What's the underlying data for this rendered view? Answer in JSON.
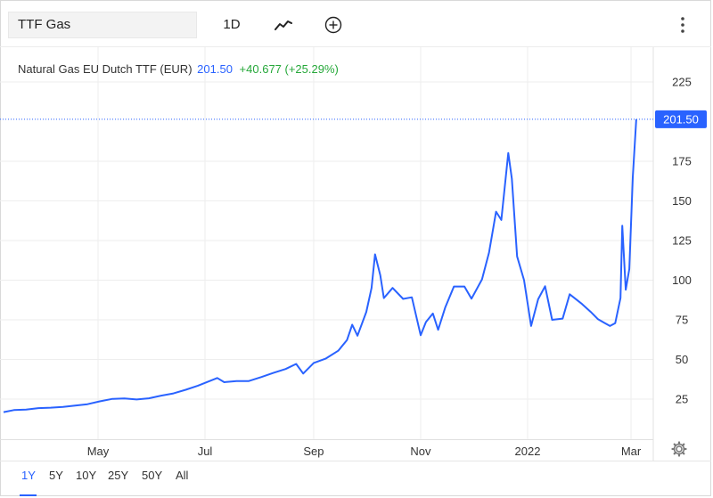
{
  "toolbar": {
    "symbol_value": "TTF Gas",
    "interval_label": "1D",
    "style_icon": "line-chart-icon",
    "add_icon": "plus-circle-icon",
    "menu_icon": "vertical-dots-icon"
  },
  "legend": {
    "name": "Natural Gas EU Dutch TTF (EUR)",
    "price": "201.50",
    "change": "+40.677 (+25.29%)"
  },
  "price_tag": "201.50",
  "range_buttons": [
    "1Y",
    "5Y",
    "10Y",
    "25Y",
    "50Y",
    "All"
  ],
  "active_range": "1Y",
  "settings_icon": "gear-icon",
  "colors": {
    "line": "#2962ff",
    "price_tag_bg": "#2962ff",
    "change_positive": "#26a83a",
    "grid": "#eeeeee"
  },
  "chart_data": {
    "type": "line",
    "title": "",
    "xlabel": "",
    "ylabel": "",
    "x_ticks": [
      "May",
      "Jul",
      "Sep",
      "Nov",
      "2022",
      "Mar"
    ],
    "y_ticks": [
      25,
      50,
      75,
      100,
      125,
      150,
      175,
      225
    ],
    "ylim": [
      3,
      245
    ],
    "grid": true,
    "price_line": 201.5,
    "series": [
      {
        "name": "",
        "points": [
          [
            "2021-03-07",
            16.8
          ],
          [
            "2021-03-14",
            18.1
          ],
          [
            "2021-03-21",
            18.4
          ],
          [
            "2021-03-28",
            19.3
          ],
          [
            "2021-04-04",
            19.6
          ],
          [
            "2021-04-11",
            20.1
          ],
          [
            "2021-04-18",
            20.9
          ],
          [
            "2021-04-25",
            21.8
          ],
          [
            "2021-05-02",
            23.6
          ],
          [
            "2021-05-09",
            25.1
          ],
          [
            "2021-05-16",
            25.4
          ],
          [
            "2021-05-23",
            24.8
          ],
          [
            "2021-05-30",
            25.5
          ],
          [
            "2021-06-06",
            27.2
          ],
          [
            "2021-06-13",
            28.6
          ],
          [
            "2021-06-20",
            30.9
          ],
          [
            "2021-06-27",
            33.5
          ],
          [
            "2021-07-04",
            36.6
          ],
          [
            "2021-07-08",
            38.3
          ],
          [
            "2021-07-12",
            35.7
          ],
          [
            "2021-07-19",
            36.4
          ],
          [
            "2021-07-26",
            36.4
          ],
          [
            "2021-08-02",
            38.9
          ],
          [
            "2021-08-09",
            41.5
          ],
          [
            "2021-08-16",
            44.0
          ],
          [
            "2021-08-22",
            47.2
          ],
          [
            "2021-08-26",
            41.1
          ],
          [
            "2021-09-01",
            47.8
          ],
          [
            "2021-09-08",
            50.6
          ],
          [
            "2021-09-15",
            55.5
          ],
          [
            "2021-09-20",
            62.2
          ],
          [
            "2021-09-23",
            71.9
          ],
          [
            "2021-09-26",
            65.0
          ],
          [
            "2021-10-01",
            80.0
          ],
          [
            "2021-10-04",
            95.1
          ],
          [
            "2021-10-06",
            116.3
          ],
          [
            "2021-10-09",
            103.1
          ],
          [
            "2021-10-11",
            88.7
          ],
          [
            "2021-10-16",
            95.1
          ],
          [
            "2021-10-22",
            88.2
          ],
          [
            "2021-10-27",
            89.2
          ],
          [
            "2021-11-01",
            65.3
          ],
          [
            "2021-11-04",
            73.6
          ],
          [
            "2021-11-08",
            79.0
          ],
          [
            "2021-11-11",
            68.7
          ],
          [
            "2021-11-15",
            82.7
          ],
          [
            "2021-11-20",
            96.0
          ],
          [
            "2021-11-26",
            96.0
          ],
          [
            "2021-11-30",
            88.3
          ],
          [
            "2021-12-06",
            100.5
          ],
          [
            "2021-12-10",
            117.4
          ],
          [
            "2021-12-14",
            143.2
          ],
          [
            "2021-12-17",
            138.0
          ],
          [
            "2021-12-21",
            180.2
          ],
          [
            "2021-12-23",
            164.0
          ],
          [
            "2021-12-26",
            115.0
          ],
          [
            "2021-12-30",
            100.0
          ],
          [
            "2022-01-03",
            71.1
          ],
          [
            "2022-01-07",
            88.0
          ],
          [
            "2022-01-11",
            96.2
          ],
          [
            "2022-01-15",
            75.0
          ],
          [
            "2022-01-21",
            75.8
          ],
          [
            "2022-01-25",
            91.1
          ],
          [
            "2022-02-01",
            85.0
          ],
          [
            "2022-02-06",
            80.0
          ],
          [
            "2022-02-10",
            75.5
          ],
          [
            "2022-02-14",
            73.0
          ],
          [
            "2022-02-17",
            71.1
          ],
          [
            "2022-02-20",
            72.9
          ],
          [
            "2022-02-23",
            88.7
          ],
          [
            "2022-02-24",
            134.3
          ],
          [
            "2022-02-26",
            94.0
          ],
          [
            "2022-02-28",
            107.0
          ],
          [
            "2022-03-02",
            165.0
          ],
          [
            "2022-03-04",
            201.5
          ]
        ]
      }
    ]
  }
}
